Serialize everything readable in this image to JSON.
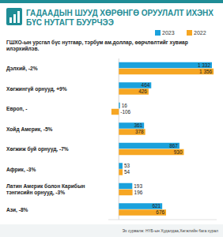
{
  "chart_data": {
    "type": "bar",
    "orientation": "horizontal",
    "title": "ГАДААДЫН ШУУД ХӨРӨНГӨ ОРУУЛАЛТ ИХЭНХ БҮС НУТАГТ БУУРЧЭЭ",
    "subtitle": "ГШХО-ын урсгал бүс нутгаар, тэрбум ам.доллар, өөрчлөлтийг хувиар илэрхийлэв.",
    "source": "Эх сурвалж: НҮБ-ын Худалдаа,Хөгжлийн бага хурал",
    "categories": [
      "Дэлхий, -2%",
      "Хөгжингүй орнууд, +9%",
      "Европ, -",
      "Хойд Америк, -5%",
      "Хөгжиж буй орнууд, -7%",
      "Африк, -3%",
      "Латин Америк болон Карибын тэнгисийн орнууд, -3%",
      "Ази, -8%"
    ],
    "series": [
      {
        "name": "2023",
        "color": "#1ba1dc",
        "values": [
          1332,
          464,
          16,
          361,
          867,
          53,
          193,
          621
        ],
        "value_labels": [
          "1 332",
          "464",
          "16",
          "361",
          "867",
          "53",
          "193",
          "621"
        ]
      },
      {
        "name": "2022",
        "color": "#f6a623",
        "values": [
          1356,
          426,
          -106,
          378,
          930,
          54,
          196,
          676
        ],
        "value_labels": [
          "1 356",
          "426",
          "-106",
          "378",
          "930",
          "54",
          "196",
          "676"
        ]
      }
    ],
    "xlim": [
      -150,
      1400
    ],
    "grid": false,
    "legend": "top-right",
    "data_labels": true,
    "tick_labels": false
  }
}
